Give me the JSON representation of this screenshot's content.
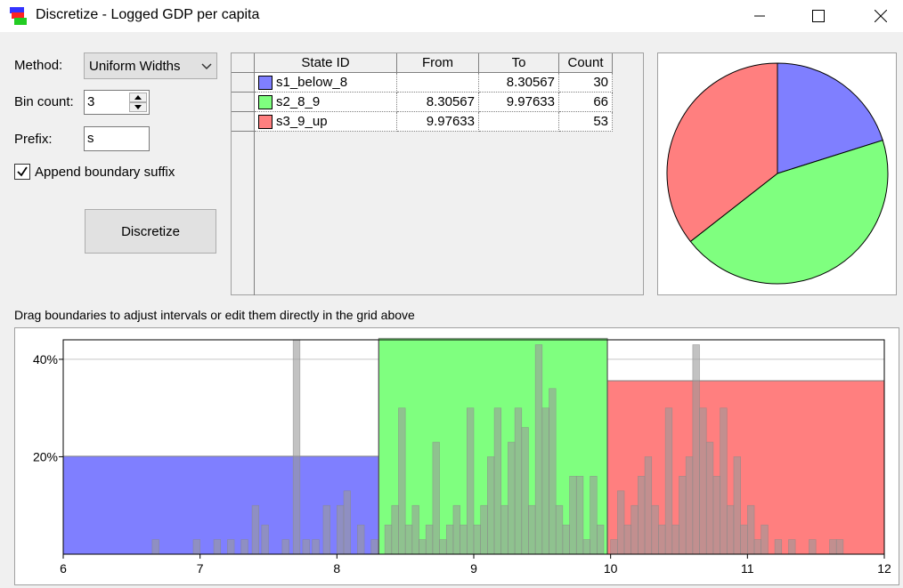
{
  "window": {
    "title": "Discretize - Logged GDP per capita",
    "icon": "discretize-app-icon"
  },
  "controls": {
    "method_label": "Method:",
    "method_value": "Uniform Widths",
    "bin_count_label": "Bin count:",
    "bin_count_value": "3",
    "prefix_label": "Prefix:",
    "prefix_value": "s",
    "append_suffix_label": "Append boundary suffix",
    "append_suffix_checked": true,
    "discretize_button": "Discretize"
  },
  "grid": {
    "headers": [
      "State ID",
      "From",
      "To",
      "Count"
    ],
    "rows": [
      {
        "id": "s1_below_8",
        "from": "",
        "to": "8.30567",
        "count": "30",
        "color": "#7f7fff"
      },
      {
        "id": "s2_8_9",
        "from": "8.30567",
        "to": "9.97633",
        "count": "66",
        "color": "#7fff7f"
      },
      {
        "id": "s3_9_up",
        "from": "9.97633",
        "to": "",
        "count": "53",
        "color": "#ff7f7f"
      }
    ]
  },
  "hint": "Drag boundaries to adjust intervals or edit them directly in the grid above",
  "colors": {
    "blue": "#7f7fff",
    "green": "#7fff7f",
    "red": "#ff7f7f",
    "gray": "#999999"
  },
  "chart_data": [
    {
      "type": "pie",
      "labels": [
        "s1_below_8",
        "s2_8_9",
        "s3_9_up"
      ],
      "values": [
        30,
        66,
        53
      ],
      "colors": [
        "#7f7fff",
        "#7fff7f",
        "#ff7f7f"
      ]
    },
    {
      "type": "bar",
      "xlim": [
        6,
        12
      ],
      "ylim": [
        0,
        44
      ],
      "x_ticks": [
        "6",
        "7",
        "8",
        "9",
        "10",
        "11",
        "12"
      ],
      "y_ticks": [
        "20%",
        "40%"
      ],
      "grid": true,
      "intervals": [
        {
          "from": 6,
          "to": 8.30567,
          "percent": 20.1,
          "color": "#7f7fff"
        },
        {
          "from": 8.30567,
          "to": 9.97633,
          "percent": 44.3,
          "color": "#7fff7f"
        },
        {
          "from": 9.97633,
          "to": 12,
          "percent": 35.6,
          "color": "#ff7f7f"
        }
      ],
      "histogram": {
        "bin_width": 0.05,
        "x": [
          6.65,
          6.95,
          7.1,
          7.2,
          7.3,
          7.38,
          7.45,
          7.6,
          7.68,
          7.75,
          7.82,
          7.9,
          8.0,
          8.05,
          8.15,
          8.25,
          8.35,
          8.4,
          8.45,
          8.5,
          8.55,
          8.6,
          8.65,
          8.7,
          8.75,
          8.8,
          8.85,
          8.9,
          8.95,
          9.0,
          9.05,
          9.1,
          9.15,
          9.2,
          9.25,
          9.3,
          9.35,
          9.4,
          9.45,
          9.5,
          9.55,
          9.6,
          9.65,
          9.7,
          9.75,
          9.8,
          9.85,
          9.9,
          10.0,
          10.05,
          10.1,
          10.15,
          10.2,
          10.25,
          10.3,
          10.35,
          10.4,
          10.45,
          10.5,
          10.55,
          10.6,
          10.65,
          10.7,
          10.75,
          10.8,
          10.85,
          10.9,
          10.95,
          11.0,
          11.05,
          11.1,
          11.2,
          11.3,
          11.45,
          11.6,
          11.65
        ],
        "percent": [
          3,
          3,
          3,
          3,
          3,
          10,
          6,
          3,
          44,
          3,
          3,
          10,
          10,
          13,
          6,
          3,
          6,
          10,
          30,
          6,
          10,
          3,
          6,
          23,
          3,
          6,
          10,
          6,
          30,
          6,
          10,
          20,
          30,
          10,
          23,
          30,
          26,
          10,
          43,
          30,
          34,
          10,
          6,
          16,
          16,
          3,
          16,
          6,
          3,
          13,
          6,
          10,
          16,
          20,
          10,
          6,
          30,
          6,
          16,
          20,
          43,
          30,
          23,
          16,
          30,
          10,
          20,
          6,
          10,
          3,
          6,
          3,
          3,
          3,
          3,
          3
        ]
      }
    }
  ]
}
